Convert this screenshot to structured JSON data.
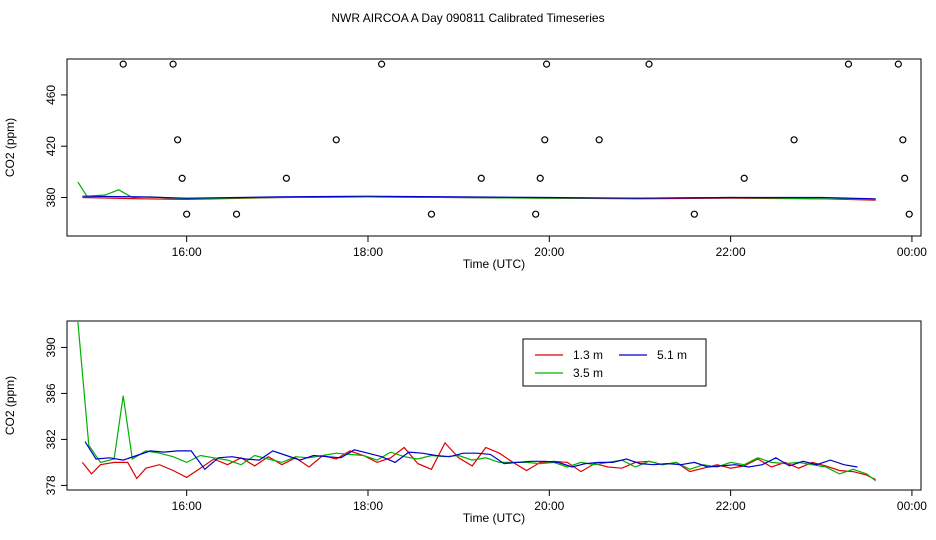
{
  "title": "NWR AIRCOA A  Day 090811  Calibrated Timeseries",
  "chart_data": [
    {
      "type": "line",
      "title": "",
      "xlabel": "Time (UTC)",
      "ylabel": "CO2 (ppm)",
      "x_unit": "hours UTC",
      "xlim": [
        14.68,
        24.1
      ],
      "ylim": [
        350,
        488
      ],
      "x_ticks": [
        {
          "v": 16,
          "label": "16:00"
        },
        {
          "v": 18,
          "label": "18:00"
        },
        {
          "v": 20,
          "label": "20:00"
        },
        {
          "v": 22,
          "label": "22:00"
        },
        {
          "v": 24,
          "label": "00:00"
        }
      ],
      "y_ticks": [
        {
          "v": 380,
          "label": "380"
        },
        {
          "v": 420,
          "label": "420"
        },
        {
          "v": 460,
          "label": "460"
        }
      ],
      "points_series": {
        "name": "",
        "x": [
          15.3,
          15.85,
          15.9,
          15.95,
          16.0,
          16.55,
          17.1,
          17.65,
          18.15,
          18.7,
          19.25,
          19.85,
          19.9,
          19.95,
          19.97,
          20.55,
          21.1,
          21.6,
          22.15,
          22.7,
          23.3,
          23.85,
          23.9,
          23.92,
          23.97
        ],
        "y": [
          484,
          484,
          425,
          395,
          367,
          367,
          395,
          425,
          484,
          367,
          395,
          367,
          395,
          425,
          484,
          425,
          484,
          367,
          395,
          425,
          484,
          484,
          425,
          395,
          367
        ]
      },
      "series": [
        {
          "name": "1.3 m",
          "color": "#e00000",
          "x": [
            14.85,
            15.5,
            16.0,
            17.0,
            18.0,
            19.0,
            20.0,
            21.0,
            22.0,
            23.0,
            23.6
          ],
          "y": [
            380.0,
            379.0,
            378.5,
            380.0,
            380.5,
            380.0,
            379.5,
            379.0,
            379.5,
            379.0,
            378.0
          ]
        },
        {
          "name": "3.5 m",
          "color": "#00b000",
          "x": [
            14.8,
            14.9,
            15.1,
            15.25,
            15.4,
            15.6,
            16.0,
            17.0,
            18.0,
            19.0,
            20.0,
            21.0,
            22.0,
            23.0,
            23.6
          ],
          "y": [
            392.0,
            381.0,
            382.0,
            386.0,
            380.0,
            380.5,
            379.0,
            380.0,
            380.5,
            380.0,
            379.5,
            379.5,
            380.0,
            379.0,
            378.5
          ]
        },
        {
          "name": "5.1 m",
          "color": "#0000cc",
          "x": [
            14.85,
            15.5,
            16.0,
            17.0,
            18.0,
            19.0,
            20.0,
            21.0,
            22.0,
            23.0,
            23.6
          ],
          "y": [
            381.0,
            380.5,
            379.5,
            380.5,
            381.0,
            380.5,
            380.0,
            379.5,
            380.0,
            380.0,
            379.0
          ]
        }
      ]
    },
    {
      "type": "line",
      "title": "",
      "xlabel": "Time (UTC)",
      "ylabel": "CO2 (ppm)",
      "x_unit": "hours UTC",
      "xlim": [
        14.68,
        24.1
      ],
      "ylim": [
        377.6,
        392.3
      ],
      "x_ticks": [
        {
          "v": 16,
          "label": "16:00"
        },
        {
          "v": 18,
          "label": "18:00"
        },
        {
          "v": 20,
          "label": "20:00"
        },
        {
          "v": 22,
          "label": "22:00"
        },
        {
          "v": 24,
          "label": "00:00"
        }
      ],
      "y_ticks": [
        {
          "v": 378,
          "label": "378"
        },
        {
          "v": 382,
          "label": "382"
        },
        {
          "v": 386,
          "label": "386"
        },
        {
          "v": 390,
          "label": "390"
        }
      ],
      "legend_position": "top-center",
      "series": [
        {
          "name": "1.3 m",
          "color": "#e00000",
          "x": [
            14.85,
            14.95,
            15.05,
            15.2,
            15.35,
            15.45,
            15.55,
            15.7,
            15.85,
            16.0,
            16.15,
            16.3,
            16.45,
            16.6,
            16.75,
            16.9,
            17.05,
            17.2,
            17.35,
            17.5,
            17.65,
            17.8,
            17.95,
            18.1,
            18.25,
            18.4,
            18.55,
            18.7,
            18.85,
            19.0,
            19.15,
            19.3,
            19.45,
            19.6,
            19.75,
            19.9,
            20.05,
            20.2,
            20.35,
            20.5,
            20.65,
            20.8,
            20.95,
            21.1,
            21.25,
            21.4,
            21.55,
            21.7,
            21.85,
            22.0,
            22.15,
            22.3,
            22.45,
            22.6,
            22.75,
            22.9,
            23.05,
            23.2,
            23.35,
            23.5,
            23.6
          ],
          "y": [
            380.0,
            379.0,
            379.8,
            380.0,
            380.0,
            378.6,
            379.5,
            379.8,
            379.3,
            378.7,
            379.5,
            380.3,
            379.8,
            380.4,
            379.7,
            380.5,
            379.8,
            380.4,
            379.6,
            380.6,
            380.3,
            381.0,
            380.6,
            380.0,
            380.4,
            381.3,
            379.9,
            379.4,
            381.7,
            380.4,
            379.7,
            381.3,
            380.8,
            380.0,
            379.3,
            380.0,
            380.1,
            380.0,
            379.2,
            379.9,
            379.6,
            379.5,
            380.0,
            380.1,
            379.8,
            380.0,
            379.2,
            379.5,
            379.8,
            379.5,
            379.7,
            380.3,
            379.6,
            380.0,
            379.5,
            380.0,
            379.7,
            379.3,
            379.2,
            378.9,
            378.5
          ]
        },
        {
          "name": "3.5 m",
          "color": "#00b000",
          "x": [
            14.8,
            14.92,
            15.05,
            15.2,
            15.3,
            15.4,
            15.55,
            15.7,
            15.85,
            16.0,
            16.15,
            16.3,
            16.45,
            16.6,
            16.75,
            16.9,
            17.05,
            17.2,
            17.35,
            17.5,
            17.65,
            17.8,
            17.95,
            18.1,
            18.25,
            18.4,
            18.55,
            18.7,
            18.85,
            19.0,
            19.15,
            19.3,
            19.45,
            19.6,
            19.75,
            19.9,
            20.05,
            20.2,
            20.35,
            20.5,
            20.65,
            20.8,
            20.95,
            21.1,
            21.25,
            21.4,
            21.55,
            21.7,
            21.85,
            22.0,
            22.15,
            22.3,
            22.45,
            22.6,
            22.75,
            22.9,
            23.05,
            23.2,
            23.35,
            23.5,
            23.6
          ],
          "y": [
            392.2,
            381.5,
            380.0,
            380.3,
            385.8,
            380.3,
            381.0,
            380.8,
            380.5,
            380.0,
            380.6,
            380.4,
            380.2,
            379.8,
            380.6,
            380.3,
            380.0,
            380.5,
            380.4,
            380.6,
            380.8,
            380.7,
            380.6,
            380.2,
            380.9,
            380.5,
            380.3,
            380.6,
            380.5,
            380.6,
            380.2,
            380.4,
            380.0,
            380.0,
            380.0,
            379.9,
            380.0,
            379.6,
            380.0,
            379.8,
            380.0,
            380.2,
            379.6,
            380.1,
            379.8,
            380.0,
            379.4,
            379.8,
            379.6,
            380.0,
            379.8,
            380.4,
            380.0,
            379.9,
            380.0,
            379.8,
            379.6,
            379.0,
            379.4,
            379.0,
            378.4
          ]
        },
        {
          "name": "5.1 m",
          "color": "#0000cc",
          "x": [
            14.88,
            15.0,
            15.15,
            15.3,
            15.45,
            15.6,
            15.75,
            15.9,
            16.05,
            16.2,
            16.35,
            16.5,
            16.65,
            16.8,
            16.95,
            17.1,
            17.25,
            17.4,
            17.55,
            17.7,
            17.85,
            18.0,
            18.15,
            18.3,
            18.45,
            18.6,
            18.75,
            18.9,
            19.05,
            19.2,
            19.35,
            19.5,
            19.65,
            19.8,
            19.95,
            20.1,
            20.25,
            20.4,
            20.55,
            20.7,
            20.85,
            21.0,
            21.15,
            21.3,
            21.45,
            21.6,
            21.75,
            21.9,
            22.05,
            22.2,
            22.35,
            22.5,
            22.65,
            22.8,
            22.95,
            23.1,
            23.25,
            23.4
          ],
          "y": [
            381.8,
            380.3,
            380.4,
            380.2,
            380.6,
            381.0,
            380.9,
            381.0,
            381.0,
            379.4,
            380.4,
            380.5,
            380.3,
            380.2,
            381.0,
            380.6,
            380.2,
            380.6,
            380.5,
            380.4,
            381.1,
            380.8,
            380.5,
            380.0,
            380.9,
            380.8,
            380.6,
            380.5,
            380.8,
            380.8,
            380.7,
            379.9,
            380.0,
            380.1,
            380.1,
            380.0,
            379.6,
            379.9,
            380.0,
            380.0,
            380.3,
            379.9,
            379.8,
            379.9,
            379.8,
            380.0,
            379.6,
            379.7,
            379.8,
            379.6,
            379.8,
            380.4,
            379.7,
            380.1,
            379.8,
            380.2,
            379.8,
            379.6
          ]
        }
      ]
    }
  ]
}
